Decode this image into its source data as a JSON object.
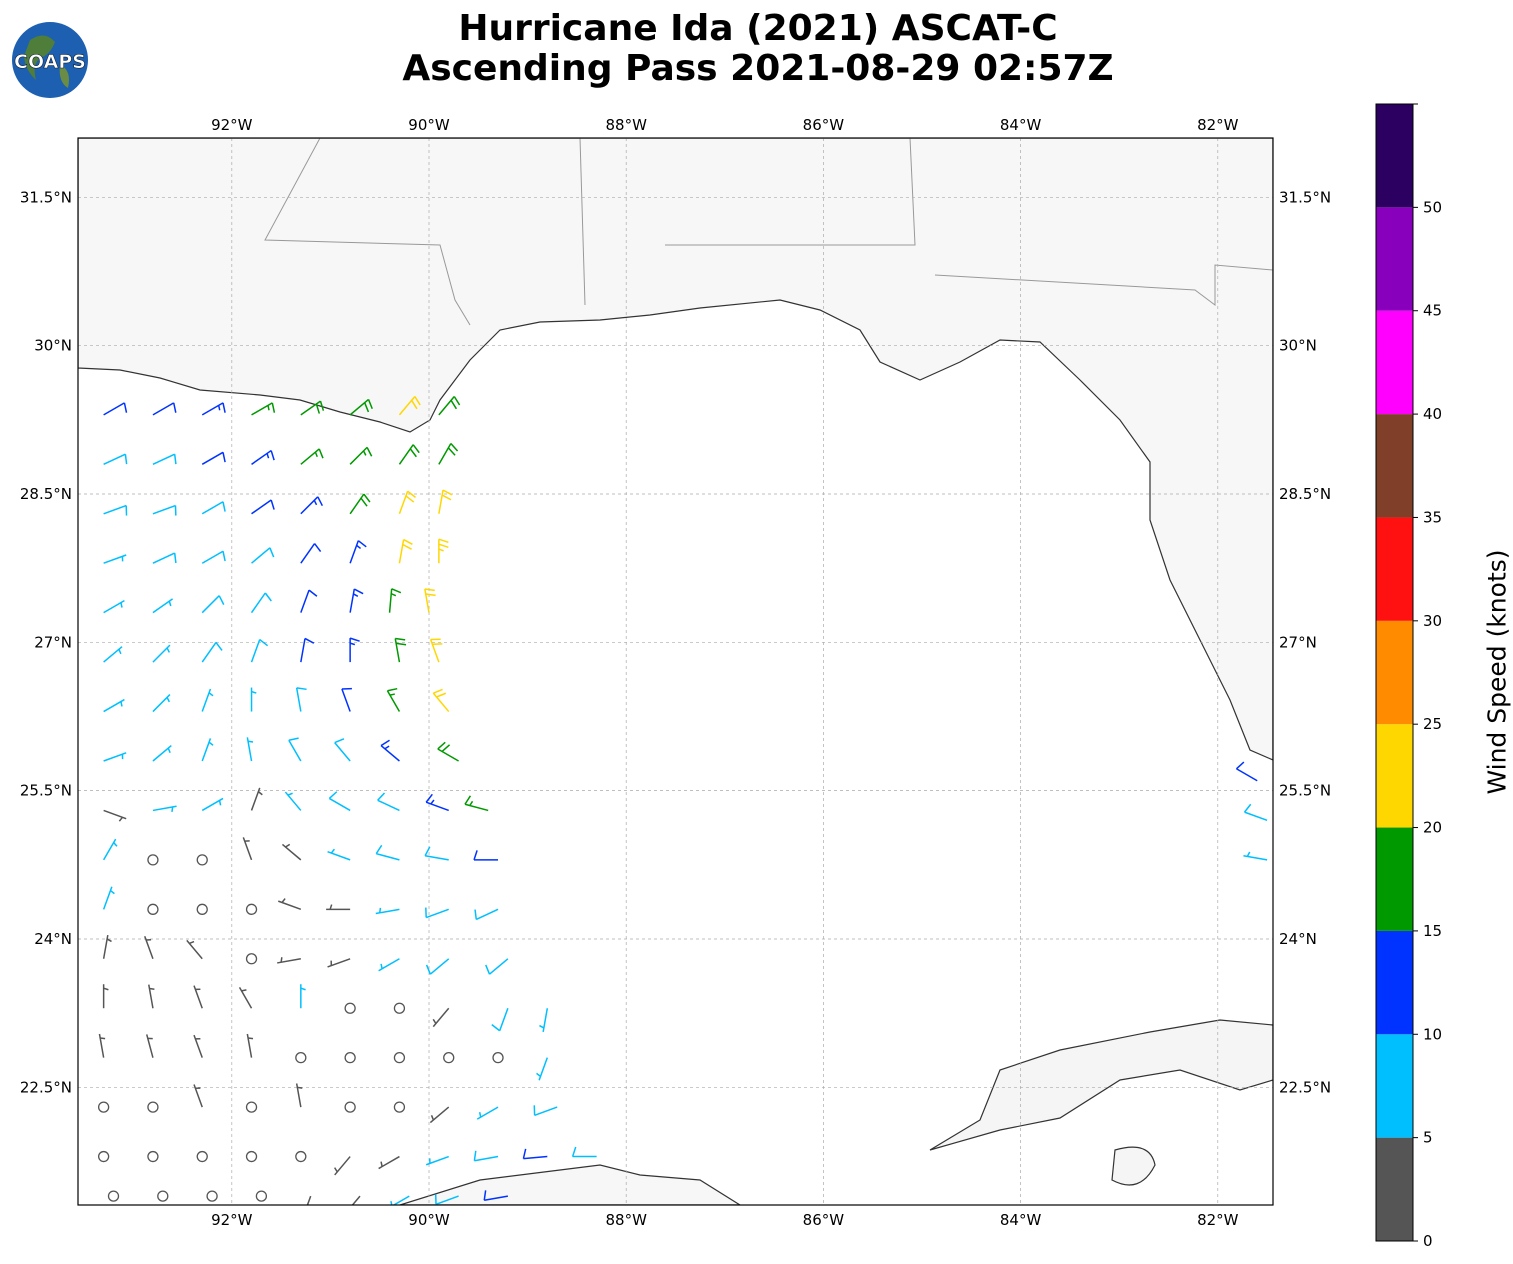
{
  "title": {
    "line1": "Hurricane Ida (2021) ASCAT-C",
    "line2": "Ascending Pass 2021-08-29 02:57Z"
  },
  "logo": {
    "text": "COAPS",
    "icon": "globe-logo-icon"
  },
  "map": {
    "lon_range": [
      -93.56,
      -81.44
    ],
    "lat_range": [
      21.31,
      32.1
    ],
    "lon_ticks": [
      {
        "v": -92,
        "label": "92°W"
      },
      {
        "v": -90,
        "label": "90°W"
      },
      {
        "v": -88,
        "label": "88°W"
      },
      {
        "v": -86,
        "label": "86°W"
      },
      {
        "v": -84,
        "label": "84°W"
      },
      {
        "v": -82,
        "label": "82°W"
      }
    ],
    "lat_ticks": [
      {
        "v": 31.5,
        "label": "31.5°N"
      },
      {
        "v": 30,
        "label": "30°N"
      },
      {
        "v": 28.5,
        "label": "28.5°N"
      },
      {
        "v": 27,
        "label": "27°N"
      },
      {
        "v": 25.5,
        "label": "25.5°N"
      },
      {
        "v": 24,
        "label": "24°N"
      },
      {
        "v": 22.5,
        "label": "22.5°N"
      }
    ]
  },
  "colorbar": {
    "label": "Wind Speed (knots)",
    "bounds": [
      0,
      5,
      10,
      15,
      20,
      25,
      30,
      35,
      40,
      45,
      50,
      55
    ],
    "colors": [
      "#555555",
      "#00bfff",
      "#0033ff",
      "#009900",
      "#ffd700",
      "#ff8c00",
      "#ff1111",
      "#803f28",
      "#ff00ff",
      "#8800bb",
      "#2b0060"
    ],
    "tick_labels": [
      "0",
      "5",
      "10",
      "15",
      "20",
      "25",
      "30",
      "35",
      "40",
      "45",
      "50"
    ]
  },
  "chart_data": {
    "type": "wind_barbs",
    "units": "knots",
    "fields": [
      "lon",
      "lat",
      "speed_kt",
      "direction_from_deg"
    ],
    "barbs": [
      [
        -93.3,
        29.3,
        12,
        60
      ],
      [
        -92.8,
        29.3,
        12,
        60
      ],
      [
        -92.3,
        29.3,
        13,
        60
      ],
      [
        -91.8,
        29.3,
        17,
        60
      ],
      [
        -91.3,
        29.3,
        18,
        55
      ],
      [
        -90.8,
        29.3,
        18,
        50
      ],
      [
        -90.3,
        29.3,
        22,
        40
      ],
      [
        -89.9,
        29.3,
        18,
        40
      ],
      [
        -93.3,
        28.8,
        8,
        65
      ],
      [
        -92.8,
        28.8,
        9,
        65
      ],
      [
        -92.3,
        28.8,
        12,
        60
      ],
      [
        -91.8,
        28.8,
        13,
        55
      ],
      [
        -91.3,
        28.8,
        16,
        50
      ],
      [
        -90.8,
        28.8,
        17,
        45
      ],
      [
        -90.3,
        28.8,
        18,
        35
      ],
      [
        -89.9,
        28.8,
        19,
        30
      ],
      [
        -93.3,
        28.3,
        8,
        70
      ],
      [
        -92.8,
        28.3,
        8,
        70
      ],
      [
        -92.3,
        28.3,
        9,
        60
      ],
      [
        -91.8,
        28.3,
        12,
        55
      ],
      [
        -91.3,
        28.3,
        13,
        45
      ],
      [
        -90.8,
        28.3,
        18,
        35
      ],
      [
        -90.3,
        28.3,
        22,
        20
      ],
      [
        -89.9,
        28.3,
        22,
        10
      ],
      [
        -93.3,
        27.8,
        7,
        70
      ],
      [
        -92.8,
        27.8,
        8,
        65
      ],
      [
        -92.3,
        27.8,
        8,
        60
      ],
      [
        -91.8,
        27.8,
        9,
        50
      ],
      [
        -91.3,
        27.8,
        12,
        35
      ],
      [
        -90.8,
        27.8,
        13,
        20
      ],
      [
        -90.3,
        27.8,
        22,
        10
      ],
      [
        -89.9,
        27.8,
        23,
        0
      ],
      [
        -93.3,
        27.3,
        7,
        60
      ],
      [
        -92.8,
        27.3,
        7,
        55
      ],
      [
        -92.3,
        27.3,
        8,
        45
      ],
      [
        -91.8,
        27.3,
        9,
        35
      ],
      [
        -91.3,
        27.3,
        12,
        20
      ],
      [
        -90.8,
        27.3,
        13,
        10
      ],
      [
        -90.4,
        27.3,
        17,
        5
      ],
      [
        -90.0,
        27.3,
        22,
        350
      ],
      [
        -93.3,
        26.8,
        7,
        50
      ],
      [
        -92.8,
        26.8,
        7,
        45
      ],
      [
        -92.3,
        26.8,
        8,
        35
      ],
      [
        -91.8,
        26.8,
        8,
        20
      ],
      [
        -91.3,
        26.8,
        12,
        10
      ],
      [
        -90.8,
        26.8,
        13,
        0
      ],
      [
        -90.3,
        26.8,
        18,
        350
      ],
      [
        -89.9,
        26.8,
        22,
        340
      ],
      [
        -93.3,
        26.3,
        6,
        60
      ],
      [
        -92.8,
        26.3,
        7,
        45
      ],
      [
        -92.3,
        26.3,
        6,
        20
      ],
      [
        -91.8,
        26.3,
        7,
        0
      ],
      [
        -91.3,
        26.3,
        9,
        350
      ],
      [
        -90.8,
        26.3,
        12,
        340
      ],
      [
        -90.3,
        26.3,
        17,
        330
      ],
      [
        -89.8,
        26.3,
        22,
        320
      ],
      [
        -93.3,
        25.8,
        7,
        70
      ],
      [
        -92.8,
        25.8,
        6,
        50
      ],
      [
        -92.3,
        25.8,
        6,
        20
      ],
      [
        -91.8,
        25.8,
        7,
        350
      ],
      [
        -91.3,
        25.8,
        8,
        330
      ],
      [
        -90.8,
        25.8,
        9,
        320
      ],
      [
        -90.3,
        25.8,
        13,
        310
      ],
      [
        -89.7,
        25.8,
        18,
        300
      ],
      [
        -93.3,
        25.3,
        4,
        110
      ],
      [
        -92.8,
        25.3,
        6,
        80
      ],
      [
        -92.3,
        25.3,
        6,
        60
      ],
      [
        -91.8,
        25.3,
        4,
        20
      ],
      [
        -91.3,
        25.3,
        7,
        320
      ],
      [
        -90.8,
        25.3,
        8,
        300
      ],
      [
        -90.3,
        25.3,
        9,
        295
      ],
      [
        -89.8,
        25.3,
        13,
        290
      ],
      [
        -89.4,
        25.3,
        17,
        285
      ],
      [
        -93.3,
        24.8,
        7,
        30
      ],
      [
        -92.8,
        24.8,
        1,
        0
      ],
      [
        -92.3,
        24.8,
        1,
        0
      ],
      [
        -91.8,
        24.8,
        3,
        340
      ],
      [
        -91.3,
        24.8,
        4,
        310
      ],
      [
        -90.8,
        24.8,
        6,
        290
      ],
      [
        -90.3,
        24.8,
        8,
        285
      ],
      [
        -89.8,
        24.8,
        9,
        280
      ],
      [
        -89.3,
        24.8,
        12,
        270
      ],
      [
        -93.3,
        24.3,
        7,
        20
      ],
      [
        -92.8,
        24.3,
        2,
        0
      ],
      [
        -92.3,
        24.3,
        1,
        0
      ],
      [
        -91.8,
        24.3,
        2,
        0
      ],
      [
        -91.3,
        24.3,
        4,
        290
      ],
      [
        -90.8,
        24.3,
        4,
        270
      ],
      [
        -90.3,
        24.3,
        7,
        260
      ],
      [
        -89.8,
        24.3,
        8,
        250
      ],
      [
        -89.3,
        24.3,
        9,
        245
      ],
      [
        -93.3,
        23.8,
        4,
        10
      ],
      [
        -92.8,
        23.8,
        4,
        340
      ],
      [
        -92.3,
        23.8,
        3,
        320
      ],
      [
        -91.8,
        23.8,
        2,
        0
      ],
      [
        -91.3,
        23.8,
        3,
        260
      ],
      [
        -90.8,
        23.8,
        4,
        250
      ],
      [
        -90.3,
        23.8,
        7,
        240
      ],
      [
        -89.8,
        23.8,
        8,
        230
      ],
      [
        -89.2,
        23.8,
        9,
        230
      ],
      [
        -93.3,
        23.3,
        4,
        0
      ],
      [
        -92.8,
        23.3,
        3,
        350
      ],
      [
        -92.3,
        23.3,
        4,
        340
      ],
      [
        -91.8,
        23.3,
        3,
        330
      ],
      [
        -91.3,
        23.3,
        6,
        0
      ],
      [
        -90.8,
        23.3,
        2,
        0
      ],
      [
        -90.3,
        23.3,
        1,
        0
      ],
      [
        -89.8,
        23.3,
        3,
        220
      ],
      [
        -89.2,
        23.3,
        8,
        200
      ],
      [
        -88.8,
        23.3,
        7,
        190
      ],
      [
        -93.3,
        22.8,
        4,
        350
      ],
      [
        -92.8,
        22.8,
        4,
        345
      ],
      [
        -92.3,
        22.8,
        4,
        340
      ],
      [
        -91.8,
        22.8,
        4,
        350
      ],
      [
        -91.3,
        22.8,
        2,
        0
      ],
      [
        -90.8,
        22.8,
        1,
        0
      ],
      [
        -90.3,
        22.8,
        1,
        0
      ],
      [
        -89.8,
        22.8,
        2,
        0
      ],
      [
        -89.3,
        22.8,
        1,
        0
      ],
      [
        -88.8,
        22.8,
        7,
        200
      ],
      [
        -93.3,
        22.3,
        1,
        0
      ],
      [
        -92.8,
        22.3,
        2,
        0
      ],
      [
        -92.3,
        22.3,
        4,
        340
      ],
      [
        -91.8,
        22.3,
        2,
        0
      ],
      [
        -91.3,
        22.3,
        4,
        350
      ],
      [
        -90.8,
        22.3,
        2,
        0
      ],
      [
        -90.3,
        22.3,
        1,
        0
      ],
      [
        -89.8,
        22.3,
        4,
        230
      ],
      [
        -89.3,
        22.3,
        7,
        240
      ],
      [
        -88.7,
        22.3,
        8,
        250
      ],
      [
        -93.3,
        21.8,
        1,
        0
      ],
      [
        -92.8,
        21.8,
        1,
        0
      ],
      [
        -92.3,
        21.8,
        2,
        0
      ],
      [
        -91.8,
        21.8,
        2,
        0
      ],
      [
        -91.3,
        21.8,
        1,
        0
      ],
      [
        -90.8,
        21.8,
        4,
        220
      ],
      [
        -90.3,
        21.8,
        4,
        240
      ],
      [
        -89.8,
        21.8,
        7,
        250
      ],
      [
        -89.3,
        21.8,
        8,
        260
      ],
      [
        -88.8,
        21.8,
        12,
        265
      ],
      [
        -88.3,
        21.8,
        8,
        270
      ],
      [
        -93.2,
        21.4,
        1,
        0
      ],
      [
        -92.7,
        21.4,
        1,
        0
      ],
      [
        -92.2,
        21.4,
        1,
        0
      ],
      [
        -91.7,
        21.4,
        2,
        0
      ],
      [
        -91.2,
        21.4,
        4,
        200
      ],
      [
        -90.7,
        21.4,
        4,
        220
      ],
      [
        -90.2,
        21.4,
        7,
        240
      ],
      [
        -89.7,
        21.4,
        8,
        250
      ],
      [
        -89.2,
        21.4,
        12,
        260
      ],
      [
        -81.6,
        25.6,
        12,
        300
      ],
      [
        -81.5,
        25.2,
        8,
        290
      ],
      [
        -81.5,
        24.8,
        7,
        280
      ]
    ]
  }
}
